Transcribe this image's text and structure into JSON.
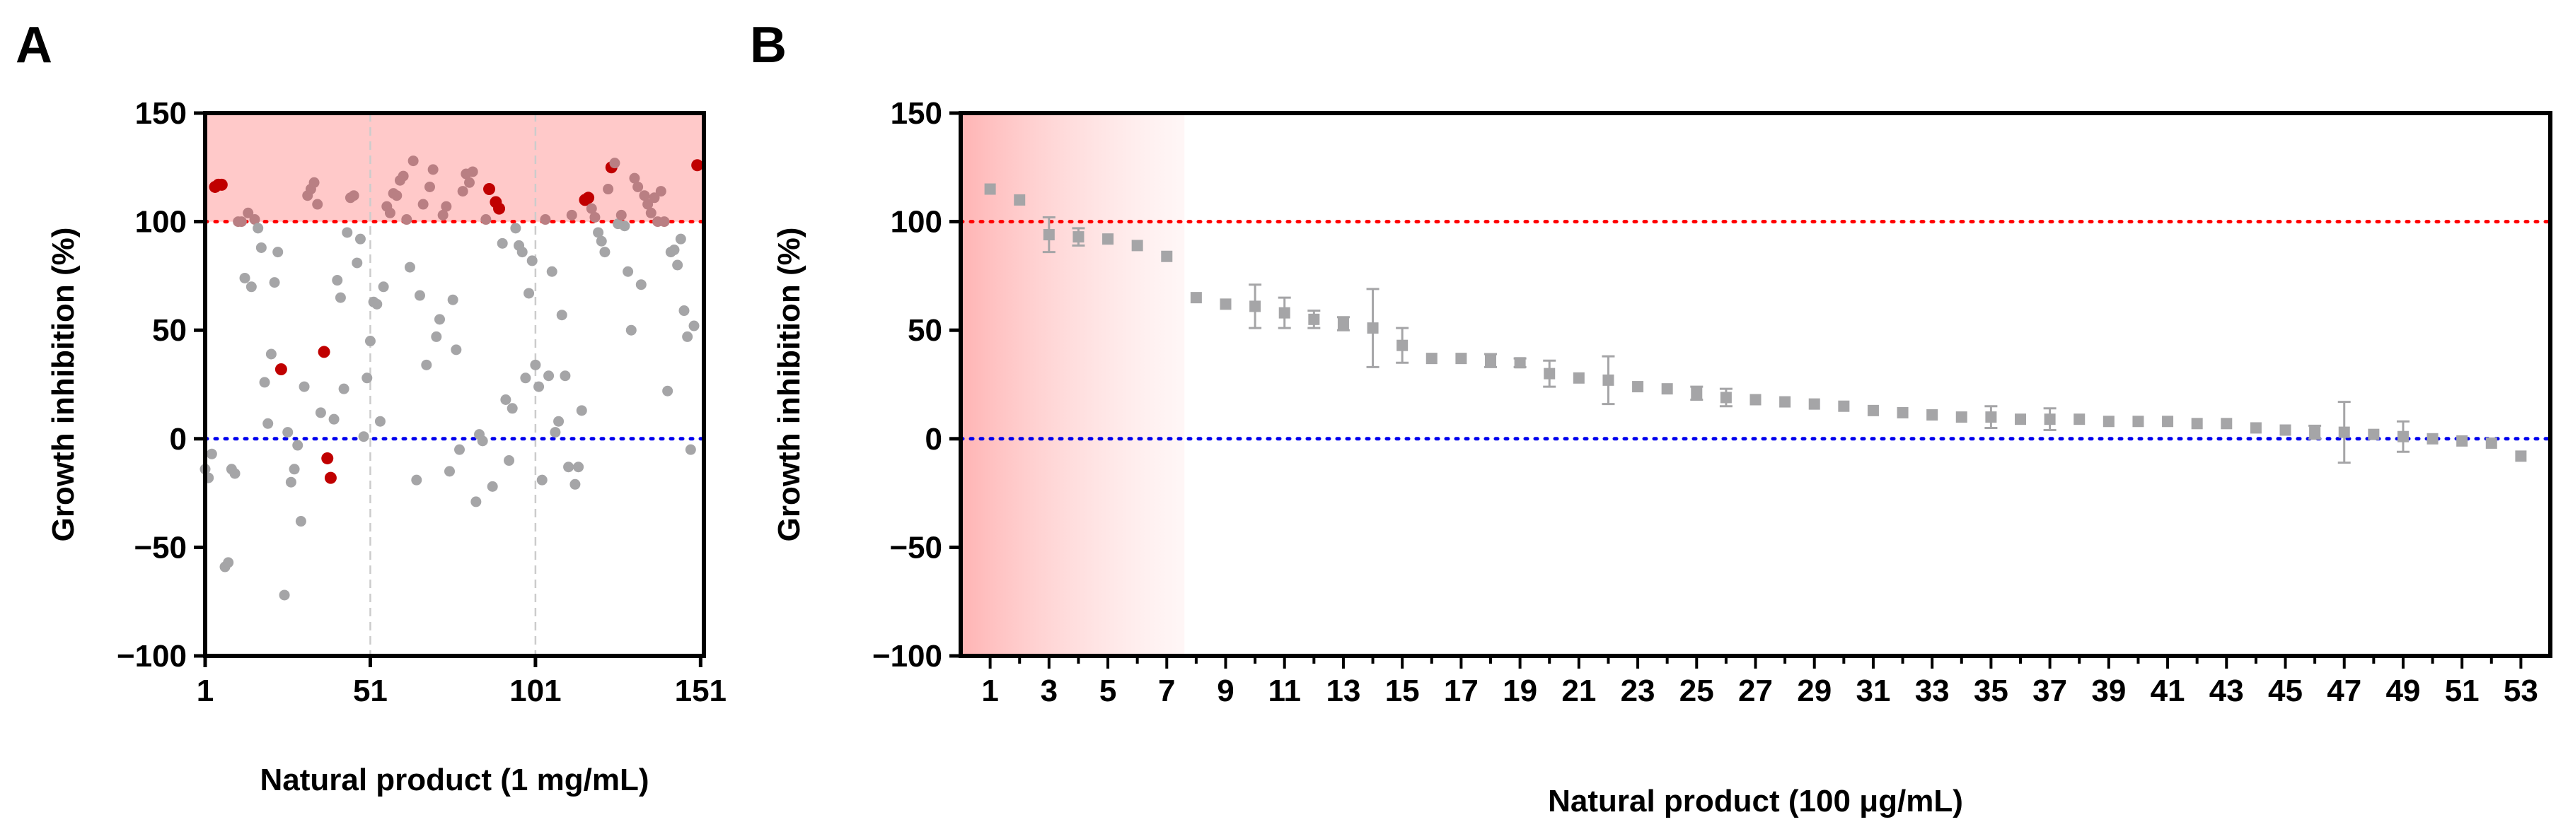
{
  "panels": [
    {
      "letter": "A"
    },
    {
      "letter": "B"
    }
  ],
  "colors": {
    "point_grey": "#a5a5a7",
    "point_highlight": "#c00000",
    "point_shaded": "#b97f83",
    "shade": "#ffc9c9",
    "ref_upper": "#ff0000",
    "ref_lower": "#0000ee",
    "grid": "#cccccc"
  },
  "chart_data": [
    {
      "panel": "A",
      "type": "scatter",
      "title": "",
      "xlabel": "Natural product (1 mg/mL)",
      "ylabel": "Growth inhibition (%)",
      "xlim": [
        1,
        152
      ],
      "ylim": [
        -100,
        150
      ],
      "xticks": [
        1,
        51,
        101,
        151
      ],
      "yticks": [
        -100,
        -50,
        0,
        50,
        100,
        150
      ],
      "grid_x": [
        51,
        101
      ],
      "shaded_band": [
        100,
        150
      ],
      "ref_lines": [
        100,
        0
      ],
      "points": [
        [
          1,
          -14
        ],
        [
          2,
          -18
        ],
        [
          3,
          -7
        ],
        [
          4,
          116
        ],
        [
          5,
          117
        ],
        [
          6,
          117
        ],
        [
          7,
          -59
        ],
        [
          8,
          -57
        ],
        [
          9,
          -14
        ],
        [
          10,
          -16
        ],
        [
          11,
          100
        ],
        [
          12,
          100
        ],
        [
          13,
          74
        ],
        [
          14,
          104
        ],
        [
          15,
          70
        ],
        [
          16,
          101
        ],
        [
          17,
          97
        ],
        [
          18,
          88
        ],
        [
          19,
          26
        ],
        [
          20,
          7
        ],
        [
          21,
          39
        ],
        [
          22,
          72
        ],
        [
          23,
          86
        ],
        [
          24,
          32
        ],
        [
          25,
          -72
        ],
        [
          26,
          3
        ],
        [
          27,
          -20
        ],
        [
          28,
          -14
        ],
        [
          29,
          -3
        ],
        [
          30,
          -38
        ],
        [
          31,
          24
        ],
        [
          32,
          112
        ],
        [
          33,
          115
        ],
        [
          34,
          118
        ],
        [
          35,
          108
        ],
        [
          36,
          12
        ],
        [
          37,
          40
        ],
        [
          38,
          -9
        ],
        [
          39,
          -18
        ],
        [
          40,
          9
        ],
        [
          41,
          73
        ],
        [
          42,
          65
        ],
        [
          43,
          23
        ],
        [
          44,
          95
        ],
        [
          45,
          111
        ],
        [
          46,
          112
        ],
        [
          47,
          81
        ],
        [
          48,
          92
        ],
        [
          49,
          1
        ],
        [
          50,
          28
        ],
        [
          51,
          45
        ],
        [
          52,
          63
        ],
        [
          53,
          62
        ],
        [
          54,
          8
        ],
        [
          55,
          70
        ],
        [
          56,
          107
        ],
        [
          57,
          104
        ],
        [
          58,
          113
        ],
        [
          59,
          112
        ],
        [
          60,
          119
        ],
        [
          61,
          121
        ],
        [
          62,
          101
        ],
        [
          63,
          79
        ],
        [
          64,
          128
        ],
        [
          65,
          -19
        ],
        [
          66,
          66
        ],
        [
          67,
          108
        ],
        [
          68,
          34
        ],
        [
          69,
          116
        ],
        [
          70,
          124
        ],
        [
          71,
          47
        ],
        [
          72,
          55
        ],
        [
          73,
          103
        ],
        [
          74,
          107
        ],
        [
          75,
          -15
        ],
        [
          76,
          64
        ],
        [
          77,
          41
        ],
        [
          78,
          -5
        ],
        [
          79,
          114
        ],
        [
          80,
          122
        ],
        [
          81,
          118
        ],
        [
          82,
          123
        ],
        [
          83,
          -29
        ],
        [
          84,
          2
        ],
        [
          85,
          -1
        ],
        [
          86,
          101
        ],
        [
          87,
          115
        ],
        [
          88,
          -22
        ],
        [
          89,
          109
        ],
        [
          90,
          106
        ],
        [
          91,
          90
        ],
        [
          92,
          18
        ],
        [
          93,
          -10
        ],
        [
          94,
          14
        ],
        [
          95,
          97
        ],
        [
          96,
          89
        ],
        [
          97,
          86
        ],
        [
          98,
          28
        ],
        [
          99,
          67
        ],
        [
          100,
          82
        ],
        [
          101,
          34
        ],
        [
          102,
          24
        ],
        [
          103,
          -19
        ],
        [
          104,
          101
        ],
        [
          105,
          29
        ],
        [
          106,
          77
        ],
        [
          107,
          3
        ],
        [
          108,
          8
        ],
        [
          109,
          57
        ],
        [
          110,
          29
        ],
        [
          111,
          -13
        ],
        [
          112,
          103
        ],
        [
          113,
          -21
        ],
        [
          114,
          -13
        ],
        [
          115,
          13
        ],
        [
          116,
          110
        ],
        [
          117,
          111
        ],
        [
          118,
          106
        ],
        [
          119,
          102
        ],
        [
          120,
          95
        ],
        [
          121,
          91
        ],
        [
          122,
          86
        ],
        [
          123,
          115
        ],
        [
          124,
          125
        ],
        [
          125,
          127
        ],
        [
          126,
          99
        ],
        [
          127,
          103
        ],
        [
          128,
          98
        ],
        [
          129,
          77
        ],
        [
          130,
          50
        ],
        [
          131,
          120
        ],
        [
          132,
          116
        ],
        [
          133,
          71
        ],
        [
          134,
          112
        ],
        [
          135,
          108
        ],
        [
          136,
          104
        ],
        [
          137,
          111
        ],
        [
          138,
          100
        ],
        [
          139,
          114
        ],
        [
          140,
          100
        ],
        [
          141,
          22
        ],
        [
          142,
          86
        ],
        [
          143,
          87
        ],
        [
          144,
          80
        ],
        [
          145,
          92
        ],
        [
          146,
          59
        ],
        [
          147,
          47
        ],
        [
          148,
          -5
        ],
        [
          149,
          52
        ],
        [
          150,
          126
        ]
      ],
      "highlight_indices": [
        4,
        5,
        6,
        24,
        37,
        38,
        39,
        87,
        89,
        90,
        116,
        117,
        124,
        150
      ]
    },
    {
      "panel": "B",
      "type": "scatter",
      "marker": "square",
      "title": "",
      "xlabel": "Natural product (100 μg/mL)",
      "ylabel": "Growth inhibition (%)",
      "xlim": [
        0,
        54
      ],
      "ylim": [
        -100,
        150
      ],
      "xticks": [
        1,
        3,
        5,
        7,
        9,
        11,
        13,
        15,
        17,
        19,
        21,
        23,
        25,
        27,
        29,
        31,
        33,
        35,
        37,
        39,
        41,
        43,
        45,
        47,
        49,
        51,
        53
      ],
      "yticks": [
        -100,
        -50,
        0,
        50,
        100,
        150
      ],
      "shaded_region_x": [
        0,
        7.6
      ],
      "ref_lines": [
        100,
        0
      ],
      "x": [
        1,
        2,
        3,
        4,
        5,
        6,
        7,
        8,
        9,
        10,
        11,
        12,
        13,
        14,
        15,
        16,
        17,
        18,
        19,
        20,
        21,
        22,
        23,
        24,
        25,
        26,
        27,
        28,
        29,
        30,
        31,
        32,
        33,
        34,
        35,
        36,
        37,
        38,
        39,
        40,
        41,
        42,
        43,
        44,
        45,
        46,
        47,
        48,
        49,
        50,
        51,
        52,
        53
      ],
      "y": [
        115,
        110,
        94,
        93,
        92,
        89,
        84,
        65,
        62,
        61,
        58,
        55,
        53,
        51,
        43,
        37,
        37,
        36,
        35,
        30,
        28,
        27,
        24,
        23,
        21,
        19,
        18,
        17,
        16,
        15,
        13,
        12,
        11,
        10,
        10,
        9,
        9,
        9,
        8,
        8,
        8,
        7,
        7,
        5,
        4,
        3,
        3,
        2,
        1,
        0,
        -1,
        -2,
        -8
      ],
      "err": [
        0,
        0,
        8,
        4,
        0,
        0,
        0,
        0,
        0,
        10,
        7,
        4,
        3,
        18,
        8,
        0,
        0,
        3,
        2,
        6,
        0,
        11,
        0,
        0,
        3,
        4,
        0,
        0,
        0,
        0,
        0,
        0,
        0,
        0,
        5,
        0,
        5,
        0,
        0,
        0,
        0,
        0,
        0,
        0,
        0,
        3,
        14,
        0,
        7,
        0,
        0,
        0,
        0
      ]
    }
  ]
}
